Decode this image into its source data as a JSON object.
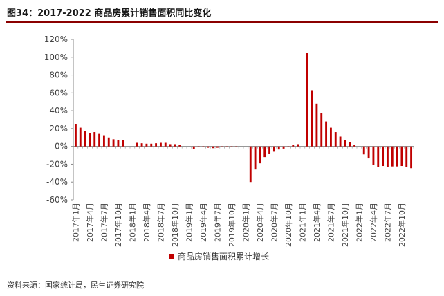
{
  "title": "图34：2017-2022 商品房累计销售面积同比变化",
  "source": "资料来源：国家统计局，民生证券研究院",
  "colors": {
    "bar": "#c00000",
    "rule": "#8b0000",
    "axis": "#888888"
  },
  "chart_data": {
    "type": "bar",
    "ylim": [
      -0.6,
      1.2
    ],
    "yticks": [
      -0.6,
      -0.4,
      -0.2,
      0,
      0.2,
      0.4,
      0.6,
      0.8,
      1.0,
      1.2
    ],
    "ytick_labels": [
      "-60%",
      "-40%",
      "-20%",
      "0%",
      "20%",
      "40%",
      "60%",
      "80%",
      "100%",
      "120%"
    ],
    "legend": {
      "position": "bottom-center"
    },
    "categories": [
      "2017年1月",
      "2017年2月",
      "2017年3月",
      "2017年4月",
      "2017年5月",
      "2017年6月",
      "2017年7月",
      "2017年8月",
      "2017年9月",
      "2017年10月",
      "2017年11月",
      "2017年12月",
      "2018年1月",
      "2018年2月",
      "2018年3月",
      "2018年4月",
      "2018年5月",
      "2018年6月",
      "2018年7月",
      "2018年8月",
      "2018年9月",
      "2018年10月",
      "2018年11月",
      "2018年12月",
      "2019年1月",
      "2019年2月",
      "2019年3月",
      "2019年4月",
      "2019年5月",
      "2019年6月",
      "2019年7月",
      "2019年8月",
      "2019年9月",
      "2019年10月",
      "2019年11月",
      "2019年12月",
      "2020年1月",
      "2020年2月",
      "2020年3月",
      "2020年4月",
      "2020年5月",
      "2020年6月",
      "2020年7月",
      "2020年8月",
      "2020年9月",
      "2020年10月",
      "2020年11月",
      "2020年12月",
      "2021年1月",
      "2021年2月",
      "2021年3月",
      "2021年4月",
      "2021年5月",
      "2021年6月",
      "2021年7月",
      "2021年8月",
      "2021年9月",
      "2021年10月",
      "2021年11月",
      "2021年12月",
      "2022年1月",
      "2022年2月",
      "2022年3月",
      "2022年4月",
      "2022年5月",
      "2022年6月",
      "2022年7月",
      "2022年8月",
      "2022年9月",
      "2022年10月",
      "2022年11月",
      "2022年12月"
    ],
    "x_tick_labels": [
      "2017年1月",
      "2017年4月",
      "2017年7月",
      "2017年10月",
      "2018年1月",
      "2018年4月",
      "2018年7月",
      "2018年10月",
      "2019年1月",
      "2019年4月",
      "2019年7月",
      "2019年10月",
      "2020年1月",
      "2020年4月",
      "2020年7月",
      "2020年10月",
      "2021年1月",
      "2021年4月",
      "2021年7月",
      "2021年10月",
      "2022年1月",
      "2022年4月",
      "2022年7月",
      "2022年10月"
    ],
    "series": [
      {
        "name": "商品房销售面积累计增长",
        "values": [
          0.253,
          0.21,
          0.17,
          0.15,
          0.16,
          0.14,
          0.125,
          0.1,
          0.08,
          0.075,
          0.075,
          null,
          null,
          0.04,
          0.035,
          0.03,
          0.03,
          0.035,
          0.04,
          0.04,
          0.025,
          0.025,
          0.015,
          null,
          null,
          -0.03,
          -0.01,
          -0.005,
          -0.015,
          -0.02,
          -0.015,
          -0.01,
          -0.005,
          0.0,
          0.0,
          null,
          null,
          -0.4,
          -0.26,
          -0.19,
          -0.12,
          -0.08,
          -0.06,
          -0.035,
          -0.025,
          -0.01,
          0.015,
          0.025,
          null,
          1.045,
          0.63,
          0.48,
          0.37,
          0.28,
          0.21,
          0.16,
          0.11,
          0.075,
          0.045,
          0.015,
          null,
          -0.09,
          -0.135,
          -0.205,
          -0.235,
          -0.22,
          -0.235,
          -0.225,
          -0.225,
          -0.22,
          -0.235,
          -0.245
        ]
      }
    ]
  }
}
